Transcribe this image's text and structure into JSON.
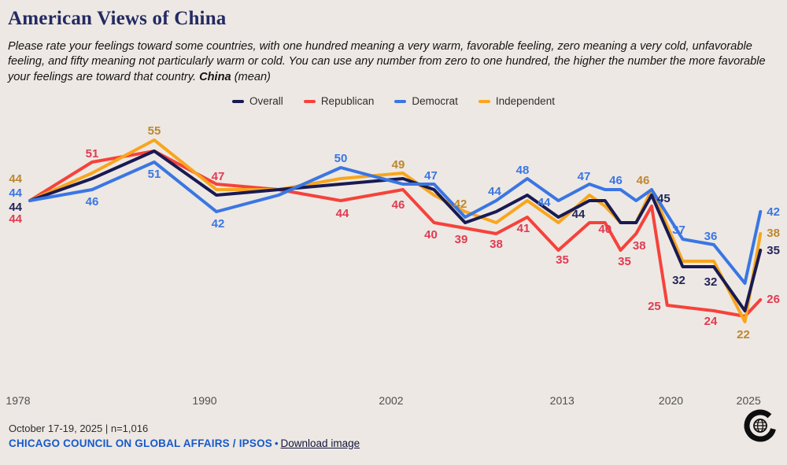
{
  "header": {
    "title": "American Views of China",
    "subtitle_text": "Please rate your feelings toward some countries, with one hundred meaning a very warm, favorable feeling, zero meaning a very cold, unfavorable feeling, and fifty meaning not particularly warm or cold. You can use any number from zero to one hundred, the higher the number the more favorable your feelings are toward that country. ",
    "subtitle_bold": "China",
    "subtitle_suffix": " (mean)"
  },
  "chart_data": {
    "type": "line",
    "title": "American Views of China",
    "x_axis_ticks": [
      1978,
      1990,
      2002,
      2013,
      2020,
      2025
    ],
    "x_range": [
      1978,
      2025
    ],
    "y_implied_range": [
      20,
      57
    ],
    "grid": false,
    "legend_position": "top-center",
    "z_order": [
      1,
      3,
      0,
      2
    ],
    "series": [
      {
        "name": "Overall",
        "color": "#191A52",
        "label_color": "#23255C",
        "points": [
          {
            "year": 1978,
            "value": 44,
            "label": [
              -10,
              13,
              "end"
            ]
          },
          {
            "year": 1982,
            "value": 48
          },
          {
            "year": 1986,
            "value": 53
          },
          {
            "year": 1990,
            "value": 45
          },
          {
            "year": 1994,
            "value": 46
          },
          {
            "year": 1998,
            "value": 47
          },
          {
            "year": 2002,
            "value": 48
          },
          {
            "year": 2004,
            "value": 46
          },
          {
            "year": 2006,
            "value": 40
          },
          {
            "year": 2008,
            "value": 42
          },
          {
            "year": 2010,
            "value": 45
          },
          {
            "year": 2012,
            "value": 41
          },
          {
            "year": 2014,
            "value": 44,
            "label": [
              -14,
              22,
              "middle"
            ]
          },
          {
            "year": 2015,
            "value": 44
          },
          {
            "year": 2016,
            "value": 40
          },
          {
            "year": 2017,
            "value": 40
          },
          {
            "year": 2018,
            "value": 45,
            "label": [
              7,
              9,
              "start"
            ]
          },
          {
            "year": 2020,
            "value": 32,
            "label": [
              -5,
              22,
              "middle"
            ]
          },
          {
            "year": 2022,
            "value": 32,
            "label": [
              -4,
              24,
              "middle"
            ]
          },
          {
            "year": 2024,
            "value": 24
          },
          {
            "year": 2025,
            "value": 35,
            "label": [
              8,
              5,
              "start"
            ]
          }
        ]
      },
      {
        "name": "Republican",
        "color": "#F6423C",
        "label_color": "#E13B52",
        "points": [
          {
            "year": 1978,
            "value": 44,
            "label": [
              -10,
              28,
              "end"
            ]
          },
          {
            "year": 1982,
            "value": 51,
            "label": [
              0,
              -6,
              "middle"
            ]
          },
          {
            "year": 1986,
            "value": 53
          },
          {
            "year": 1990,
            "value": 47,
            "label": [
              2,
              -5,
              "middle"
            ]
          },
          {
            "year": 1994,
            "value": 46
          },
          {
            "year": 1998,
            "value": 44,
            "label": [
              2,
              21,
              "middle"
            ]
          },
          {
            "year": 2002,
            "value": 46,
            "label": [
              -6,
              24,
              "middle"
            ]
          },
          {
            "year": 2004,
            "value": 40,
            "label": [
              -4,
              20,
              "middle"
            ]
          },
          {
            "year": 2006,
            "value": 39,
            "label": [
              -5,
              19,
              "middle"
            ]
          },
          {
            "year": 2008,
            "value": 38,
            "label": [
              0,
              18,
              "middle"
            ]
          },
          {
            "year": 2010,
            "value": 41,
            "label": [
              -5,
              19,
              "middle"
            ]
          },
          {
            "year": 2012,
            "value": 35,
            "label": [
              5,
              17,
              "middle"
            ]
          },
          {
            "year": 2014,
            "value": 40
          },
          {
            "year": 2015,
            "value": 40,
            "label": [
              0,
              13,
              "middle"
            ]
          },
          {
            "year": 2016,
            "value": 35,
            "label": [
              5,
              19,
              "middle"
            ]
          },
          {
            "year": 2017,
            "value": 38,
            "label": [
              4,
              20,
              "middle"
            ]
          },
          {
            "year": 2018,
            "value": 43
          },
          {
            "year": 2019,
            "value": 25,
            "label": [
              -8,
              6,
              "end"
            ]
          },
          {
            "year": 2022,
            "value": 24,
            "label": [
              -4,
              18,
              "middle"
            ]
          },
          {
            "year": 2024,
            "value": 23
          },
          {
            "year": 2025,
            "value": 26,
            "label": [
              8,
              4,
              "start"
            ]
          }
        ]
      },
      {
        "name": "Democrat",
        "color": "#3A76E3",
        "label_color": "#3A76E3",
        "points": [
          {
            "year": 1978,
            "value": 44,
            "label": [
              -10,
              -5,
              "end"
            ]
          },
          {
            "year": 1982,
            "value": 46,
            "label": [
              0,
              20,
              "middle"
            ]
          },
          {
            "year": 1986,
            "value": 51,
            "label": [
              0,
              20,
              "middle"
            ]
          },
          {
            "year": 1990,
            "value": 42,
            "label": [
              2,
              20,
              "middle"
            ]
          },
          {
            "year": 1994,
            "value": 45
          },
          {
            "year": 1998,
            "value": 50,
            "label": [
              0,
              -7,
              "middle"
            ]
          },
          {
            "year": 2002,
            "value": 47
          },
          {
            "year": 2004,
            "value": 47,
            "label": [
              -4,
              -6,
              "middle"
            ]
          },
          {
            "year": 2006,
            "value": 41
          },
          {
            "year": 2008,
            "value": 44,
            "label": [
              -2,
              -7,
              "middle"
            ]
          },
          {
            "year": 2010,
            "value": 48,
            "label": [
              -6,
              -6,
              "middle"
            ]
          },
          {
            "year": 2012,
            "value": 44,
            "label": [
              -10,
              7,
              "end"
            ]
          },
          {
            "year": 2014,
            "value": 47,
            "label": [
              -7,
              -5,
              "middle"
            ]
          },
          {
            "year": 2015,
            "value": 46
          },
          {
            "year": 2016,
            "value": 46,
            "label": [
              -6,
              -7,
              "middle"
            ]
          },
          {
            "year": 2017,
            "value": 44
          },
          {
            "year": 2018,
            "value": 46
          },
          {
            "year": 2020,
            "value": 37,
            "label": [
              -5,
              -7,
              "middle"
            ]
          },
          {
            "year": 2022,
            "value": 36,
            "label": [
              -4,
              -6,
              "middle"
            ]
          },
          {
            "year": 2024,
            "value": 29
          },
          {
            "year": 2025,
            "value": 42,
            "label": [
              8,
              5,
              "start"
            ]
          }
        ]
      },
      {
        "name": "Independent",
        "color": "#F8A61E",
        "label_color": "#BD872F",
        "points": [
          {
            "year": 1978,
            "value": 44,
            "label": [
              -10,
              -23,
              "end"
            ]
          },
          {
            "year": 1982,
            "value": 49
          },
          {
            "year": 1986,
            "value": 55,
            "label": [
              0,
              -7,
              "middle"
            ]
          },
          {
            "year": 1990,
            "value": 46
          },
          {
            "year": 1994,
            "value": 46
          },
          {
            "year": 1998,
            "value": 48
          },
          {
            "year": 2002,
            "value": 49,
            "label": [
              -6,
              -6,
              "middle"
            ]
          },
          {
            "year": 2004,
            "value": 45
          },
          {
            "year": 2006,
            "value": 42,
            "label": [
              -6,
              -5,
              "middle"
            ]
          },
          {
            "year": 2008,
            "value": 40
          },
          {
            "year": 2010,
            "value": 44
          },
          {
            "year": 2012,
            "value": 40
          },
          {
            "year": 2014,
            "value": 45
          },
          {
            "year": 2015,
            "value": 43
          },
          {
            "year": 2016,
            "value": 40
          },
          {
            "year": 2017,
            "value": 40
          },
          {
            "year": 2018,
            "value": 46,
            "label": [
              -11,
              -7,
              "middle"
            ]
          },
          {
            "year": 2020,
            "value": 33
          },
          {
            "year": 2022,
            "value": 33
          },
          {
            "year": 2024,
            "value": 22,
            "label": [
              -2,
              21,
              "middle"
            ]
          },
          {
            "year": 2025,
            "value": 38,
            "label": [
              8,
              4,
              "start"
            ]
          }
        ]
      }
    ]
  },
  "footer": {
    "date_note": "October 17-19, 2025 | n=1,016",
    "source": "CHICAGO COUNCIL ON GLOBAL AFFAIRS / IPSOS",
    "separator": "•",
    "download_label": "Download image"
  },
  "colors": {
    "background": "#EDE8E3",
    "title": "#232A63",
    "source_blue": "#1659CC"
  }
}
